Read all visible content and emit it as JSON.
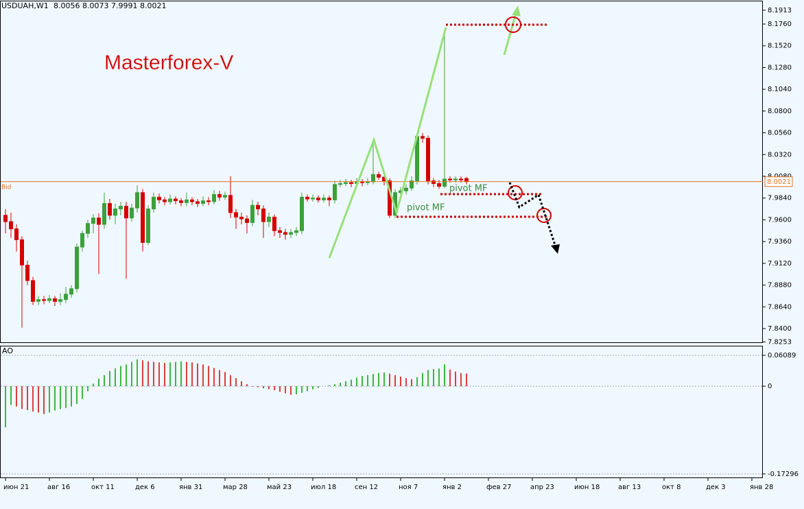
{
  "chart_data": [
    {
      "type": "candlestick",
      "symbol": "USDUAH,W1",
      "bid_label": "Bid",
      "annotations": [
        "Masterforex-V",
        "pivot MF",
        "pivot MF"
      ],
      "up_color": "#3ca03c",
      "down_color": "#d40000",
      "bid_color": "#e07020",
      "grid": false,
      "xlim": [
        -1,
        138
      ],
      "ylim": [
        7.8241,
        8.201
      ],
      "yticks": [
        8.1913,
        {
          "value": 8.176,
          "label": "8.1760"
        },
        {
          "value": 8.152,
          "label": "8.1520"
        },
        {
          "value": 8.128,
          "label": "8.1280"
        },
        {
          "value": 8.104,
          "label": "8.1040"
        },
        {
          "value": 8.08,
          "label": "8.0800"
        },
        {
          "value": 8.056,
          "label": "8.0560"
        },
        {
          "value": 8.032,
          "label": "8.0320"
        },
        {
          "value": 8.008,
          "label": "8.0080"
        },
        {
          "value": 7.984,
          "label": "7.9840"
        },
        {
          "value": 7.96,
          "label": "7.9600"
        },
        {
          "value": 7.936,
          "label": "7.9360"
        },
        {
          "value": 7.912,
          "label": "7.9120"
        },
        {
          "value": 7.888,
          "label": "7.8880"
        },
        {
          "value": 7.864,
          "label": "7.8640"
        },
        {
          "value": 7.84,
          "label": "7.8400"
        },
        7.8253
      ],
      "xticks": [
        {
          "value": 0,
          "label": "июн 21"
        },
        {
          "value": 8,
          "label": "авг 16"
        },
        {
          "value": 16,
          "label": "окт 11"
        },
        {
          "value": 24,
          "label": "дек 6"
        },
        {
          "value": 32,
          "label": "янв 31"
        },
        {
          "value": 40,
          "label": "мар 28"
        },
        {
          "value": 48,
          "label": "май 23"
        },
        {
          "value": 56,
          "label": "июл 18"
        },
        {
          "value": 64,
          "label": "сен 12"
        },
        {
          "value": 72,
          "label": "ноя 7"
        },
        {
          "value": 80,
          "label": "янв 2"
        },
        {
          "value": 88,
          "label": "фев 27"
        },
        {
          "value": 96,
          "label": "апр 23"
        },
        {
          "value": 104,
          "label": "июн 18"
        },
        {
          "value": 112,
          "label": "авг 13"
        },
        {
          "value": 120,
          "label": "окт 8"
        },
        {
          "value": 128,
          "label": "дек 3"
        },
        {
          "value": 136,
          "label": "янв 28"
        }
      ],
      "ohlc": [
        [
          7.965,
          7.972,
          7.945,
          7.958
        ],
        [
          7.958,
          7.968,
          7.94,
          7.95
        ],
        [
          7.95,
          7.955,
          7.925,
          7.938
        ],
        [
          7.938,
          7.942,
          7.841,
          7.91
        ],
        [
          7.91,
          7.915,
          7.888,
          7.893
        ],
        [
          7.893,
          7.897,
          7.866,
          7.87
        ],
        [
          7.87,
          7.876,
          7.866,
          7.872
        ],
        [
          7.872,
          7.876,
          7.867,
          7.871
        ],
        [
          7.871,
          7.877,
          7.868,
          7.873
        ],
        [
          7.873,
          7.876,
          7.865,
          7.87
        ],
        [
          7.87,
          7.879,
          7.866,
          7.872
        ],
        [
          7.872,
          7.886,
          7.868,
          7.878
        ],
        [
          7.878,
          7.888,
          7.874,
          7.884
        ],
        [
          7.884,
          7.934,
          7.88,
          7.93
        ],
        [
          7.93,
          7.948,
          7.925,
          7.945
        ],
        [
          7.945,
          7.96,
          7.94,
          7.956
        ],
        [
          7.956,
          7.966,
          7.945,
          7.962
        ],
        [
          7.962,
          7.967,
          7.9,
          7.955
        ],
        [
          7.955,
          7.99,
          7.95,
          7.978
        ],
        [
          7.978,
          7.983,
          7.96,
          7.965
        ],
        [
          7.965,
          7.978,
          7.955,
          7.972
        ],
        [
          7.972,
          7.98,
          7.965,
          7.975
        ],
        [
          7.975,
          7.98,
          7.895,
          7.962
        ],
        [
          7.962,
          7.978,
          7.958,
          7.973
        ],
        [
          7.973,
          7.998,
          7.968,
          7.99
        ],
        [
          7.99,
          7.994,
          7.925,
          7.935
        ],
        [
          7.935,
          7.976,
          7.932,
          7.972
        ],
        [
          7.972,
          7.99,
          7.968,
          7.985
        ],
        [
          7.985,
          7.989,
          7.978,
          7.982
        ],
        [
          7.982,
          7.985,
          7.976,
          7.98
        ],
        [
          7.98,
          7.988,
          7.977,
          7.983
        ],
        [
          7.983,
          7.986,
          7.977,
          7.981
        ],
        [
          7.981,
          7.984,
          7.975,
          7.979
        ],
        [
          7.979,
          7.99,
          7.975,
          7.982
        ],
        [
          7.982,
          7.985,
          7.976,
          7.98
        ],
        [
          7.98,
          7.983,
          7.974,
          7.978
        ],
        [
          7.978,
          7.986,
          7.975,
          7.981
        ],
        [
          7.981,
          7.985,
          7.976,
          7.98
        ],
        [
          7.98,
          7.993,
          7.977,
          7.988
        ],
        [
          7.988,
          7.992,
          7.981,
          7.985
        ],
        [
          7.985,
          7.991,
          7.982,
          7.987
        ],
        [
          7.987,
          8.008,
          7.962,
          7.968
        ],
        [
          7.968,
          7.972,
          7.95,
          7.963
        ],
        [
          7.963,
          7.968,
          7.955,
          7.961
        ],
        [
          7.961,
          7.965,
          7.945,
          7.957
        ],
        [
          7.957,
          7.982,
          7.953,
          7.976
        ],
        [
          7.976,
          7.98,
          7.965,
          7.972
        ],
        [
          7.972,
          7.976,
          7.94,
          7.958
        ],
        [
          7.958,
          7.968,
          7.952,
          7.963
        ],
        [
          7.963,
          7.966,
          7.942,
          7.948
        ],
        [
          7.948,
          7.952,
          7.94,
          7.946
        ],
        [
          7.946,
          7.95,
          7.938,
          7.944
        ],
        [
          7.944,
          7.95,
          7.94,
          7.946
        ],
        [
          7.946,
          7.952,
          7.942,
          7.948
        ],
        [
          7.948,
          7.99,
          7.944,
          7.985
        ],
        [
          7.985,
          7.988,
          7.98,
          7.983
        ],
        [
          7.983,
          7.988,
          7.98,
          7.984
        ],
        [
          7.984,
          7.987,
          7.979,
          7.982
        ],
        [
          7.982,
          7.988,
          7.979,
          7.984
        ],
        [
          7.984,
          7.987,
          7.975,
          7.982
        ],
        [
          7.982,
          8.003,
          7.978,
          7.999
        ],
        [
          7.999,
          8.004,
          7.996,
          8.0
        ],
        [
          8.0,
          8.005,
          7.997,
          8.001
        ],
        [
          8.001,
          8.004,
          7.996,
          8.0
        ],
        [
          8.0,
          8.006,
          7.997,
          8.002
        ],
        [
          8.002,
          8.005,
          7.997,
          8.001
        ],
        [
          8.001,
          8.006,
          7.998,
          8.002
        ],
        [
          8.002,
          8.048,
          7.999,
          8.01
        ],
        [
          8.01,
          8.013,
          8.004,
          8.007
        ],
        [
          8.007,
          8.01,
          7.998,
          8.003
        ],
        [
          8.003,
          8.006,
          7.962,
          7.965
        ],
        [
          7.965,
          7.994,
          7.962,
          7.99
        ],
        [
          7.99,
          7.996,
          7.986,
          7.992
        ],
        [
          7.992,
          7.999,
          7.988,
          7.995
        ],
        [
          7.995,
          8.008,
          7.992,
          8.003
        ],
        [
          8.003,
          8.055,
          7.999,
          8.052
        ],
        [
          8.052,
          8.056,
          8.045,
          8.05
        ],
        [
          8.05,
          8.053,
          7.999,
          8.003
        ],
        [
          8.003,
          8.006,
          7.996,
          8.0
        ],
        [
          8.0,
          8.004,
          7.994,
          7.997
        ],
        [
          7.997,
          8.17,
          7.995,
          8.005
        ],
        [
          8.005,
          8.008,
          8.001,
          8.004
        ],
        [
          8.004,
          8.008,
          8.001,
          8.005
        ],
        [
          8.005,
          8.008,
          8.001,
          8.004
        ],
        [
          8.0056,
          8.0073,
          7.9991,
          8.0021
        ]
      ]
    },
    {
      "type": "bar",
      "title": "AO",
      "up_color": "#00a000",
      "down_color": "#d40000",
      "grid": true,
      "xlim": [
        -1,
        138
      ],
      "ylim": [
        -0.1813,
        0.0785
      ],
      "yticks": [
        0.06089,
        0,
        -0.17296
      ],
      "values": [
        -0.081,
        -0.037,
        -0.04,
        -0.045,
        -0.047,
        -0.05,
        -0.052,
        -0.055,
        -0.052,
        -0.048,
        -0.045,
        -0.043,
        -0.04,
        -0.035,
        -0.025,
        -0.01,
        0.005,
        0.015,
        0.022,
        0.03,
        0.035,
        0.04,
        0.043,
        0.048,
        0.053,
        0.051,
        0.049,
        0.048,
        0.047,
        0.046,
        0.047,
        0.048,
        0.049,
        0.048,
        0.047,
        0.045,
        0.043,
        0.04,
        0.036,
        0.032,
        0.028,
        0.022,
        0.016,
        0.01,
        0.004,
        -0.001,
        -0.002,
        -0.004,
        -0.006,
        -0.008,
        -0.011,
        -0.014,
        -0.017,
        -0.016,
        -0.013,
        -0.01,
        -0.006,
        -0.003,
        0.0,
        0.002,
        0.004,
        0.007,
        0.01,
        0.013,
        0.017,
        0.02,
        0.022,
        0.024,
        0.026,
        0.027,
        0.025,
        0.022,
        0.019,
        0.016,
        0.014,
        0.018,
        0.026,
        0.032,
        0.034,
        0.035,
        0.043,
        0.033,
        0.029,
        0.026,
        0.025
      ]
    }
  ]
}
